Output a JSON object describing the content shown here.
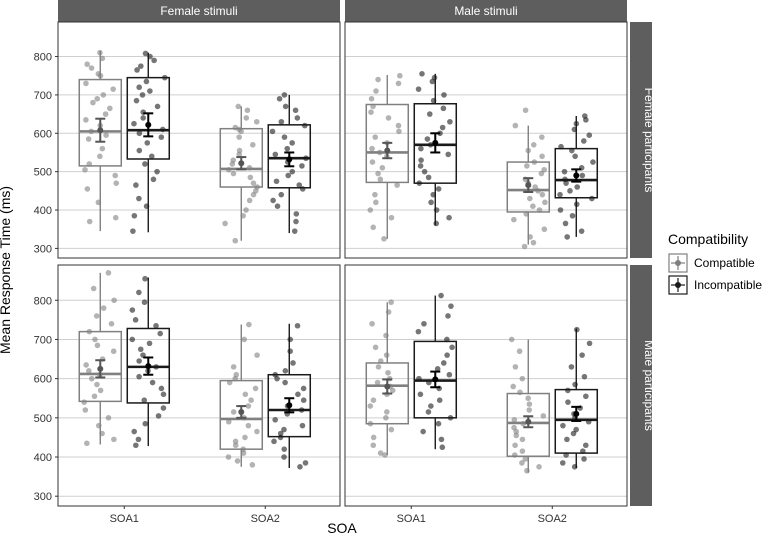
{
  "chart_data": {
    "type": "boxplot",
    "xlabel": "SOA",
    "ylabel": "Mean Response Time (ms)",
    "categories": [
      "SOA1",
      "SOA2"
    ],
    "column_facets": [
      "Female stimuli",
      "Male stimuli"
    ],
    "row_facets": [
      "Female participants",
      "Male participants"
    ],
    "yticks": [
      300,
      400,
      500,
      600,
      700,
      800
    ],
    "ylim": [
      275,
      890
    ],
    "grid": true,
    "legend": {
      "title": "Compatibility",
      "position": "right",
      "entries": [
        "Compatible",
        "Incompatible"
      ]
    },
    "colors": {
      "compatible": "#808080",
      "incompatible": "#1a1a1a",
      "strip": "#5e5e5e",
      "strip_text": "#ffffff",
      "grid": "#cfcfcf",
      "panel_border": "#333333"
    },
    "panels": [
      {
        "row": "Female participants",
        "col": "Female stimuli",
        "groups": [
          {
            "soa": "SOA1",
            "series": "Compatible",
            "box": {
              "min": 345,
              "q1": 515,
              "median": 605,
              "q3": 740,
              "max": 815
            },
            "mean": 608,
            "se": 30,
            "points": [
              810,
              795,
              780,
              770,
              755,
              750,
              730,
              715,
              700,
              690,
              680,
              665,
              650,
              635,
              620,
              605,
              595,
              585,
              560,
              540,
              520,
              505,
              490,
              470,
              455,
              420,
              380,
              370
            ]
          },
          {
            "soa": "SOA1",
            "series": "Incompatible",
            "box": {
              "min": 342,
              "q1": 533,
              "median": 608,
              "q3": 745,
              "max": 810
            },
            "mean": 622,
            "se": 30,
            "points": [
              808,
              800,
              790,
              775,
              765,
              745,
              735,
              720,
              710,
              700,
              685,
              670,
              655,
              640,
              625,
              610,
              600,
              590,
              575,
              555,
              540,
              520,
              500,
              480,
              465,
              430,
              410,
              385,
              345
            ]
          },
          {
            "soa": "SOA2",
            "series": "Compatible",
            "box": {
              "min": 320,
              "q1": 460,
              "median": 507,
              "q3": 612,
              "max": 670
            },
            "mean": 522,
            "se": 16,
            "points": [
              670,
              660,
              640,
              630,
              615,
              610,
              605,
              590,
              570,
              555,
              545,
              530,
              520,
              510,
              505,
              495,
              485,
              470,
              460,
              450,
              440,
              425,
              400,
              385,
              365,
              320
            ]
          },
          {
            "soa": "SOA2",
            "series": "Incompatible",
            "box": {
              "min": 340,
              "q1": 458,
              "median": 535,
              "q3": 622,
              "max": 700
            },
            "mean": 532,
            "se": 18,
            "points": [
              700,
              690,
              670,
              660,
              640,
              630,
              620,
              605,
              590,
              575,
              560,
              545,
              535,
              525,
              515,
              500,
              490,
              475,
              465,
              455,
              440,
              425,
              410,
              390,
              370,
              345
            ]
          }
        ]
      },
      {
        "row": "Female participants",
        "col": "Male stimuli",
        "groups": [
          {
            "soa": "SOA1",
            "series": "Compatible",
            "box": {
              "min": 325,
              "q1": 472,
              "median": 550,
              "q3": 675,
              "max": 752
            },
            "mean": 555,
            "se": 20,
            "points": [
              750,
              740,
              730,
              710,
              690,
              670,
              655,
              640,
              620,
              605,
              590,
              575,
              560,
              550,
              540,
              525,
              510,
              495,
              480,
              465,
              440,
              420,
              400,
              380,
              355,
              325
            ]
          },
          {
            "soa": "SOA1",
            "series": "Incompatible",
            "box": {
              "min": 360,
              "q1": 470,
              "median": 570,
              "q3": 677,
              "max": 755
            },
            "mean": 575,
            "se": 25,
            "points": [
              755,
              745,
              735,
              715,
              700,
              685,
              665,
              650,
              630,
              615,
              600,
              585,
              570,
              560,
              545,
              530,
              515,
              500,
              485,
              470,
              455,
              440,
              420,
              400,
              380,
              365
            ]
          },
          {
            "soa": "SOA2",
            "series": "Compatible",
            "box": {
              "min": 310,
              "q1": 395,
              "median": 452,
              "q3": 525,
              "max": 620
            },
            "mean": 465,
            "se": 18,
            "points": [
              660,
              620,
              590,
              570,
              555,
              540,
              525,
              515,
              505,
              495,
              480,
              470,
              460,
              450,
              440,
              430,
              420,
              410,
              400,
              390,
              375,
              350,
              330,
              315,
              305
            ]
          },
          {
            "soa": "SOA2",
            "series": "Incompatible",
            "box": {
              "min": 330,
              "q1": 432,
              "median": 478,
              "q3": 560,
              "max": 645
            },
            "mean": 490,
            "se": 16,
            "points": [
              645,
              635,
              625,
              610,
              595,
              580,
              565,
              555,
              540,
              525,
              510,
              500,
              490,
              480,
              470,
              460,
              450,
              440,
              430,
              415,
              400,
              385,
              365,
              345,
              330
            ]
          }
        ]
      },
      {
        "row": "Male participants",
        "col": "Female stimuli",
        "groups": [
          {
            "soa": "SOA1",
            "series": "Compatible",
            "box": {
              "min": 432,
              "q1": 542,
              "median": 612,
              "q3": 720,
              "max": 870
            },
            "mean": 625,
            "se": 22,
            "points": [
              870,
              830,
              800,
              780,
              760,
              740,
              720,
              700,
              685,
              670,
              650,
              635,
              620,
              610,
              600,
              585,
              570,
              555,
              540,
              520,
              500,
              480,
              460,
              445,
              435
            ]
          },
          {
            "soa": "SOA1",
            "series": "Incompatible",
            "box": {
              "min": 428,
              "q1": 538,
              "median": 630,
              "q3": 728,
              "max": 858
            },
            "mean": 632,
            "se": 22,
            "points": [
              855,
              820,
              795,
              775,
              750,
              735,
              715,
              700,
              690,
              675,
              660,
              645,
              630,
              620,
              605,
              590,
              575,
              560,
              545,
              525,
              505,
              485,
              465,
              445,
              430
            ]
          },
          {
            "soa": "SOA2",
            "series": "Compatible",
            "box": {
              "min": 375,
              "q1": 420,
              "median": 497,
              "q3": 595,
              "max": 738
            },
            "mean": 515,
            "se": 15,
            "points": [
              738,
              700,
              660,
              630,
              610,
              600,
              590,
              575,
              560,
              545,
              530,
              515,
              500,
              490,
              480,
              465,
              450,
              440,
              430,
              420,
              410,
              400,
              390,
              380
            ]
          },
          {
            "soa": "SOA2",
            "series": "Incompatible",
            "box": {
              "min": 372,
              "q1": 452,
              "median": 520,
              "q3": 610,
              "max": 740
            },
            "mean": 532,
            "se": 18,
            "points": [
              735,
              700,
              670,
              640,
              620,
              610,
              600,
              590,
              575,
              560,
              545,
              530,
              520,
              510,
              495,
              480,
              470,
              460,
              450,
              440,
              420,
              400,
              385,
              375
            ]
          }
        ]
      },
      {
        "row": "Male participants",
        "col": "Male stimuli",
        "groups": [
          {
            "soa": "SOA1",
            "series": "Compatible",
            "box": {
              "min": 405,
              "q1": 485,
              "median": 582,
              "q3": 640,
              "max": 795
            },
            "mean": 580,
            "se": 18,
            "points": [
              795,
              770,
              740,
              710,
              680,
              660,
              645,
              630,
              615,
              600,
              590,
              580,
              570,
              560,
              545,
              530,
              515,
              500,
              485,
              470,
              450,
              430,
              410,
              405
            ]
          },
          {
            "soa": "SOA1",
            "series": "Incompatible",
            "box": {
              "min": 420,
              "q1": 500,
              "median": 595,
              "q3": 695,
              "max": 812
            },
            "mean": 598,
            "se": 20,
            "points": [
              812,
              785,
              760,
              740,
              720,
              700,
              680,
              660,
              640,
              625,
              610,
              600,
              590,
              575,
              560,
              545,
              530,
              515,
              500,
              485,
              465,
              445,
              425
            ]
          },
          {
            "soa": "SOA2",
            "series": "Compatible",
            "box": {
              "min": 360,
              "q1": 402,
              "median": 487,
              "q3": 562,
              "max": 700
            },
            "mean": 490,
            "se": 14,
            "points": [
              700,
              670,
              630,
              600,
              580,
              565,
              550,
              535,
              520,
              505,
              495,
              485,
              475,
              465,
              455,
              445,
              430,
              415,
              405,
              395,
              385,
              375,
              365
            ]
          },
          {
            "soa": "SOA2",
            "series": "Incompatible",
            "box": {
              "min": 372,
              "q1": 410,
              "median": 495,
              "q3": 572,
              "max": 728
            },
            "mean": 510,
            "se": 18,
            "points": [
              725,
              690,
              660,
              630,
              605,
              585,
              570,
              555,
              540,
              525,
              510,
              500,
              490,
              480,
              470,
              460,
              445,
              430,
              415,
              405,
              395,
              385,
              375
            ]
          }
        ]
      }
    ]
  }
}
